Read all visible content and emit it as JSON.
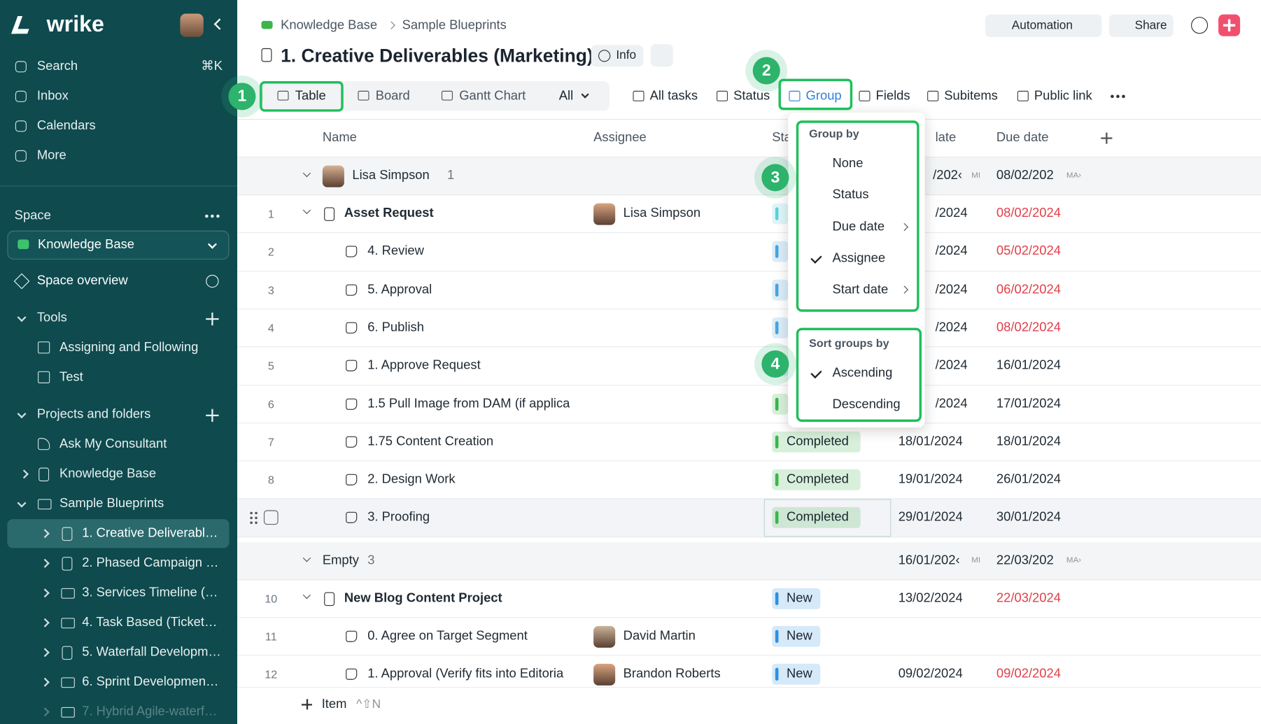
{
  "sidebar": {
    "logo": "wrike",
    "nav": [
      {
        "label": "Search",
        "shortcut": "⌘K"
      },
      {
        "label": "Inbox"
      },
      {
        "label": "Calendars"
      },
      {
        "label": "More"
      }
    ],
    "space_heading": "Space",
    "space": "Knowledge Base",
    "space_overview": "Space overview",
    "tools": {
      "heading": "Tools",
      "items": [
        "Assigning and Following",
        "Test"
      ]
    },
    "projects": {
      "heading": "Projects and folders",
      "items": [
        {
          "label": "Ask My Consultant",
          "kind": "phone"
        },
        {
          "label": "Knowledge Base",
          "kind": "project"
        },
        {
          "label": "Sample Blueprints",
          "kind": "folder"
        }
      ],
      "children": [
        {
          "label": "1. Creative Deliverabl…",
          "kind": "project",
          "selected": true
        },
        {
          "label": "2. Phased Campaign …",
          "kind": "project"
        },
        {
          "label": "3. Services Timeline (…",
          "kind": "folder"
        },
        {
          "label": "4. Task Based (Ticket…",
          "kind": "folder"
        },
        {
          "label": "5. Waterfall Developm…",
          "kind": "project"
        },
        {
          "label": "6. Sprint Developmen…",
          "kind": "folder"
        },
        {
          "label": "7. Hybrid Agile-waterf…",
          "kind": "folder",
          "faded": true
        }
      ]
    }
  },
  "header": {
    "breadcrumb": [
      "Knowledge Base",
      "Sample Blueprints"
    ],
    "title": "1. Creative Deliverables (Marketing)",
    "info": "Info",
    "automation": "Automation",
    "share": "Share"
  },
  "toolbar": {
    "views": [
      "Table",
      "Board",
      "Gantt Chart"
    ],
    "view_filter": "All",
    "actions": [
      "All tasks",
      "Status",
      "Group",
      "Fields",
      "Subitems",
      "Public link"
    ]
  },
  "callouts": [
    "1",
    "2",
    "3",
    "4"
  ],
  "table": {
    "columns": [
      "Name",
      "Assignee",
      "Sta",
      "late",
      "Due date"
    ],
    "groups": [
      {
        "name": "Lisa Simpson",
        "avatar": true,
        "count": 1,
        "start": "/202‹",
        "start_badge": "MI",
        "due": "08/02/202",
        "due_badge": "MA›",
        "rows": [
          {
            "num": 1,
            "name": "Asset Request",
            "parent": true,
            "assignee": "Lisa Simpson",
            "status_color": "#5fd0df",
            "start": "/2024",
            "due": "08/02/2024",
            "overdue": true
          },
          {
            "num": 2,
            "name": "4. Review",
            "status_color": "#4aa3df",
            "start": "/2024",
            "due": "05/02/2024",
            "overdue": true
          },
          {
            "num": 3,
            "name": "5. Approval",
            "status_color": "#4aa3df",
            "start": "/2024",
            "due": "06/02/2024",
            "overdue": true
          },
          {
            "num": 4,
            "name": "6. Publish",
            "status_color": "#4aa3df",
            "start": "/2024",
            "due": "08/02/2024",
            "overdue": true
          },
          {
            "num": 5,
            "name": "1. Approve Request",
            "status_color": "#4aa3df",
            "start": "/2024",
            "due": "16/01/2024"
          },
          {
            "num": 6,
            "name": "1.5 Pull Image from DAM (if applica",
            "status_color": "#3cb54a",
            "start": "/2024",
            "due": "17/01/2024"
          },
          {
            "num": 7,
            "name": "1.75 Content Creation",
            "status": "Completed",
            "status_color": "#3cb54a",
            "start": "18/01/2024",
            "due": "18/01/2024"
          },
          {
            "num": 8,
            "name": "2. Design Work",
            "status": "Completed",
            "status_color": "#3cb54a",
            "start": "19/01/2024",
            "due": "26/01/2024"
          },
          {
            "name": "3. Proofing",
            "hover": true,
            "status": "Completed",
            "status_color": "#3cb54a",
            "start": "29/01/2024",
            "due": "30/01/2024"
          }
        ]
      },
      {
        "name": "Empty",
        "count": 3,
        "start": "16/01/202‹",
        "start_badge": "MI",
        "due": "22/03/202",
        "due_badge": "MA›",
        "rows": [
          {
            "num": 10,
            "name": "New Blog Content Project",
            "parent": true,
            "status": "New",
            "status_color": "#2f8fe0",
            "start": "13/02/2024",
            "due": "22/03/2024",
            "overdue": true
          },
          {
            "num": 11,
            "name": "0. Agree on Target Segment",
            "assignee": "David Martin",
            "status": "New",
            "status_color": "#2f8fe0"
          },
          {
            "num": 12,
            "name": "1. Approval (Verify fits into Editoria",
            "assignee": "Brandon Roberts",
            "status": "New",
            "status_color": "#2f8fe0",
            "start": "09/02/2024",
            "due": "09/02/2024",
            "overdue": true
          }
        ]
      }
    ]
  },
  "dropdown": {
    "group_by": {
      "heading": "Group by",
      "options": [
        {
          "label": "None"
        },
        {
          "label": "Status"
        },
        {
          "label": "Due date",
          "submenu": true
        },
        {
          "label": "Assignee",
          "checked": true
        },
        {
          "label": "Start date",
          "submenu": true
        }
      ]
    },
    "sort_by": {
      "heading": "Sort groups by",
      "options": [
        {
          "label": "Ascending",
          "checked": true
        },
        {
          "label": "Descending"
        }
      ]
    }
  },
  "footer": {
    "add_item": "Item",
    "shortcut": "^⇧N"
  }
}
